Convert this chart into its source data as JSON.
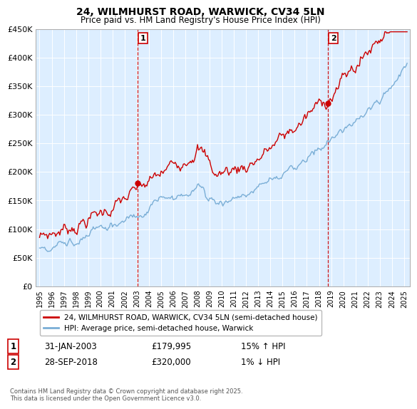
{
  "title": "24, WILMHURST ROAD, WARWICK, CV34 5LN",
  "subtitle": "Price paid vs. HM Land Registry's House Price Index (HPI)",
  "ylabel_ticks": [
    "£0",
    "£50K",
    "£100K",
    "£150K",
    "£200K",
    "£250K",
    "£300K",
    "£350K",
    "£400K",
    "£450K"
  ],
  "ylim": [
    0,
    450000
  ],
  "xlim_start": 1994.7,
  "xlim_end": 2025.5,
  "hpi_color": "#7aaed6",
  "price_color": "#cc0000",
  "marker1_date": 2003.08,
  "marker1_label": "1",
  "marker1_price": 179995,
  "marker1_text": "31-JAN-2003",
  "marker1_pct": "15% ↑ HPI",
  "marker2_date": 2018.75,
  "marker2_label": "2",
  "marker2_price": 320000,
  "marker2_text": "28-SEP-2018",
  "marker2_pct": "1% ↓ HPI",
  "legend_line1": "24, WILMHURST ROAD, WARWICK, CV34 5LN (semi-detached house)",
  "legend_line2": "HPI: Average price, semi-detached house, Warwick",
  "annotation_text": "Contains HM Land Registry data © Crown copyright and database right 2025.\nThis data is licensed under the Open Government Licence v3.0.",
  "background_color": "#ffffff",
  "plot_bg_color": "#ddeeff",
  "grid_color": "#ffffff"
}
